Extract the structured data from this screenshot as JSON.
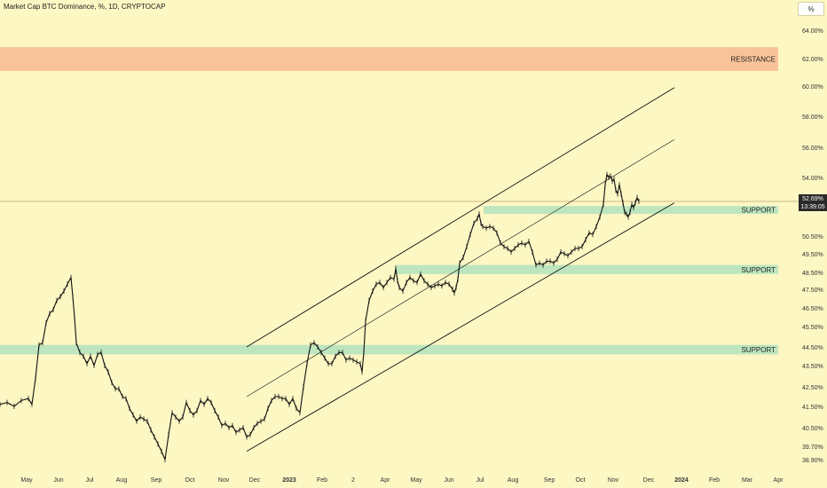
{
  "header": {
    "title": "Market Cap BTC Dominance, %, 1D, CRYPTOCAP",
    "scale_button": "%"
  },
  "last_price": {
    "value": "52.69%",
    "countdown": "13:39:05"
  },
  "colors": {
    "background": "#fdf7c3",
    "resistance_zone": "#f9c39a",
    "support_zone": "#bde6bf",
    "price_line": "#111111",
    "channel_line": "#111111",
    "last_price_line": "#c9b98a"
  },
  "chart_data": {
    "type": "line",
    "series": [
      {
        "values": [
          [
            0,
            41.6
          ],
          [
            8,
            41.7
          ],
          [
            16,
            41.5
          ],
          [
            24,
            41.8
          ],
          [
            32,
            41.9
          ],
          [
            36,
            41.6
          ],
          [
            40,
            42.9
          ],
          [
            44,
            44.6
          ],
          [
            48,
            44.7
          ],
          [
            52,
            45.7
          ],
          [
            56,
            46.2
          ],
          [
            60,
            46.4
          ],
          [
            64,
            46.9
          ],
          [
            68,
            47.1
          ],
          [
            72,
            47.4
          ],
          [
            76,
            47.8
          ],
          [
            80,
            48.2
          ],
          [
            82,
            47.1
          ],
          [
            84,
            46.0
          ],
          [
            86,
            44.7
          ],
          [
            90,
            44.2
          ],
          [
            94,
            44.0
          ],
          [
            98,
            43.6
          ],
          [
            102,
            44.0
          ],
          [
            106,
            43.5
          ],
          [
            110,
            44.1
          ],
          [
            114,
            44.2
          ],
          [
            118,
            43.5
          ],
          [
            122,
            43.2
          ],
          [
            126,
            42.7
          ],
          [
            130,
            42.4
          ],
          [
            134,
            42.4
          ],
          [
            138,
            42.0
          ],
          [
            142,
            41.9
          ],
          [
            146,
            41.4
          ],
          [
            150,
            41.1
          ],
          [
            154,
            40.8
          ],
          [
            158,
            41.0
          ],
          [
            162,
            40.9
          ],
          [
            166,
            40.8
          ],
          [
            170,
            40.4
          ],
          [
            174,
            40.1
          ],
          [
            178,
            39.8
          ],
          [
            182,
            39.4
          ],
          [
            186,
            38.9
          ],
          [
            190,
            40.2
          ],
          [
            194,
            41.2
          ],
          [
            198,
            41.0
          ],
          [
            202,
            40.8
          ],
          [
            206,
            41.0
          ],
          [
            210,
            41.7
          ],
          [
            214,
            41.3
          ],
          [
            218,
            41.1
          ],
          [
            222,
            41.3
          ],
          [
            226,
            41.8
          ],
          [
            230,
            41.6
          ],
          [
            234,
            41.9
          ],
          [
            238,
            41.7
          ],
          [
            242,
            41.3
          ],
          [
            246,
            41.0
          ],
          [
            250,
            40.6
          ],
          [
            254,
            40.7
          ],
          [
            258,
            40.5
          ],
          [
            262,
            40.6
          ],
          [
            266,
            40.3
          ],
          [
            270,
            40.4
          ],
          [
            274,
            40.5
          ],
          [
            278,
            40.1
          ],
          [
            282,
            40.2
          ],
          [
            286,
            40.5
          ],
          [
            290,
            40.7
          ],
          [
            294,
            40.8
          ],
          [
            298,
            40.9
          ],
          [
            302,
            41.4
          ],
          [
            306,
            41.8
          ],
          [
            310,
            42.0
          ],
          [
            314,
            42.0
          ],
          [
            318,
            41.9
          ],
          [
            322,
            41.9
          ],
          [
            326,
            41.6
          ],
          [
            330,
            41.9
          ],
          [
            334,
            41.4
          ],
          [
            338,
            41.2
          ],
          [
            342,
            42.5
          ],
          [
            346,
            43.6
          ],
          [
            350,
            44.6
          ],
          [
            354,
            44.7
          ],
          [
            358,
            44.5
          ],
          [
            362,
            44.2
          ],
          [
            366,
            43.9
          ],
          [
            370,
            43.6
          ],
          [
            374,
            43.6
          ],
          [
            378,
            44.0
          ],
          [
            382,
            44.2
          ],
          [
            386,
            44.2
          ],
          [
            390,
            43.8
          ],
          [
            394,
            43.9
          ],
          [
            398,
            43.8
          ],
          [
            402,
            43.7
          ],
          [
            406,
            43.6
          ],
          [
            408,
            43.2
          ],
          [
            410,
            44.2
          ],
          [
            412,
            45.8
          ],
          [
            416,
            46.9
          ],
          [
            420,
            47.4
          ],
          [
            424,
            47.8
          ],
          [
            428,
            47.9
          ],
          [
            432,
            47.6
          ],
          [
            436,
            47.9
          ],
          [
            440,
            48.2
          ],
          [
            444,
            48.1
          ],
          [
            446,
            48.7
          ],
          [
            448,
            48.0
          ],
          [
            450,
            47.6
          ],
          [
            454,
            47.4
          ],
          [
            458,
            47.9
          ],
          [
            462,
            48.2
          ],
          [
            466,
            48.0
          ],
          [
            470,
            47.9
          ],
          [
            474,
            48.4
          ],
          [
            478,
            48.0
          ],
          [
            482,
            47.8
          ],
          [
            486,
            47.6
          ],
          [
            490,
            47.7
          ],
          [
            494,
            47.8
          ],
          [
            498,
            47.7
          ],
          [
            502,
            47.9
          ],
          [
            506,
            47.8
          ],
          [
            510,
            47.5
          ],
          [
            512,
            47.3
          ],
          [
            514,
            47.6
          ],
          [
            516,
            48.1
          ],
          [
            518,
            49.0
          ],
          [
            522,
            49.3
          ],
          [
            526,
            49.9
          ],
          [
            530,
            50.6
          ],
          [
            534,
            51.3
          ],
          [
            538,
            51.6
          ],
          [
            540,
            51.9
          ],
          [
            542,
            51.3
          ],
          [
            544,
            51.1
          ],
          [
            548,
            51.0
          ],
          [
            552,
            51.1
          ],
          [
            556,
            51.0
          ],
          [
            560,
            50.7
          ],
          [
            564,
            50.1
          ],
          [
            568,
            49.9
          ],
          [
            572,
            49.8
          ],
          [
            576,
            49.6
          ],
          [
            580,
            49.8
          ],
          [
            584,
            50.0
          ],
          [
            588,
            50.1
          ],
          [
            592,
            50.0
          ],
          [
            596,
            50.2
          ],
          [
            600,
            49.6
          ],
          [
            604,
            48.9
          ],
          [
            608,
            49.0
          ],
          [
            612,
            48.9
          ],
          [
            616,
            49.1
          ],
          [
            620,
            49.1
          ],
          [
            624,
            49.0
          ],
          [
            628,
            49.2
          ],
          [
            632,
            49.6
          ],
          [
            636,
            49.5
          ],
          [
            640,
            49.4
          ],
          [
            644,
            49.6
          ],
          [
            648,
            49.8
          ],
          [
            652,
            49.8
          ],
          [
            656,
            49.9
          ],
          [
            660,
            50.3
          ],
          [
            664,
            50.7
          ],
          [
            668,
            50.6
          ],
          [
            672,
            51.1
          ],
          [
            676,
            51.7
          ],
          [
            680,
            52.5
          ],
          [
            682,
            53.6
          ],
          [
            684,
            54.2
          ],
          [
            686,
            54.0
          ],
          [
            688,
            54.1
          ],
          [
            690,
            53.8
          ],
          [
            692,
            53.9
          ],
          [
            694,
            53.3
          ],
          [
            696,
            53.1
          ],
          [
            698,
            53.6
          ],
          [
            700,
            53.1
          ],
          [
            702,
            52.6
          ],
          [
            704,
            52.0
          ],
          [
            706,
            51.9
          ],
          [
            708,
            51.7
          ],
          [
            710,
            52.0
          ],
          [
            712,
            52.5
          ],
          [
            714,
            52.3
          ],
          [
            716,
            52.6
          ],
          [
            718,
            52.9
          ],
          [
            720,
            52.69
          ]
        ]
      }
    ],
    "channel_lines": [
      {
        "name": "upper",
        "x": [
          278,
          760
        ],
        "y": [
          44.5,
          59.9
        ]
      },
      {
        "name": "middle",
        "x": [
          278,
          760
        ],
        "y": [
          42.0,
          56.5
        ]
      },
      {
        "name": "lower",
        "x": [
          278,
          760
        ],
        "y": [
          39.4,
          52.6
        ]
      }
    ],
    "zones": [
      {
        "label": "RESISTANCE",
        "y_range": [
          61.1,
          62.8
        ],
        "kind": "resistance"
      },
      {
        "label": "SUPPORT",
        "y_range": [
          51.9,
          52.4
        ],
        "kind": "support"
      },
      {
        "label": "SUPPORT",
        "y_range": [
          48.4,
          48.9
        ],
        "kind": "support"
      },
      {
        "label": "SUPPORT",
        "y_range": [
          44.1,
          44.6
        ],
        "kind": "support"
      }
    ],
    "last_value": 52.69,
    "x_ticks": [
      "May",
      "Jun",
      "Jul",
      "Aug",
      "Sep",
      "Oct",
      "Nov",
      "Dec",
      "2023",
      "Feb",
      "2",
      "Apr",
      "May",
      "Jun",
      "Jul",
      "Aug",
      "Sep",
      "Oct",
      "Nov",
      "Dec",
      "2024",
      "Feb",
      "Mar",
      "Apr"
    ],
    "bold_x_ticks": [
      "2023",
      "2024"
    ],
    "y_ticks": [
      "64.00%",
      "62.00%",
      "60.00%",
      "58.00%",
      "56.00%",
      "54.00%",
      "50.50%",
      "49.50%",
      "48.50%",
      "47.50%",
      "46.50%",
      "45.50%",
      "44.50%",
      "43.50%",
      "42.50%",
      "41.50%",
      "40.50%",
      "39.70%",
      "38.90%"
    ],
    "y_tick_values": [
      64.0,
      62.0,
      60.0,
      58.0,
      56.0,
      54.0,
      50.5,
      49.5,
      48.5,
      47.5,
      46.5,
      45.5,
      44.5,
      43.5,
      42.5,
      41.5,
      40.5,
      39.7,
      38.9
    ],
    "ylim": [
      38.5,
      65.0
    ],
    "grid": false,
    "legend": "none"
  }
}
